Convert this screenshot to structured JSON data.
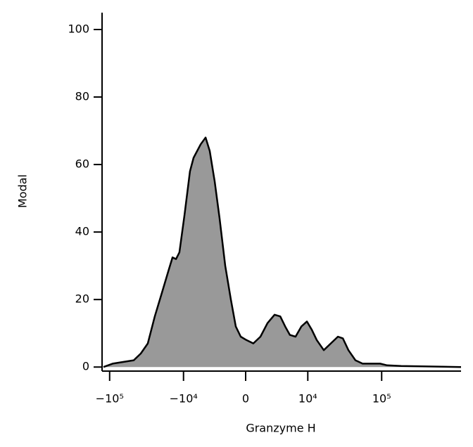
{
  "chart_data": {
    "type": "area",
    "xscale": "biexponential",
    "xlabel": "Granzyme H",
    "ylabel": "Modal",
    "x": [
      -121000,
      -91200,
      -66000,
      -47500,
      -38200,
      -30700,
      -24700,
      -19800,
      -15900,
      -14200,
      -12700,
      -11400,
      -9700,
      -8100,
      -7200,
      -5640,
      -4730,
      -4050,
      -3330,
      -2680,
      -2020,
      -1420,
      -930,
      -460,
      65,
      720,
      1420,
      2180,
      3050,
      3850,
      4650,
      5510,
      6680,
      8100,
      9720,
      11400,
      13300,
      16600,
      20700,
      25800,
      30100,
      35800,
      44500,
      55400,
      76800,
      95400,
      118500,
      183000,
      351000,
      1160000
    ],
    "series": [
      {
        "color": "#999999",
        "values": [
          0,
          1,
          1.5,
          2,
          4,
          7,
          15,
          22,
          29,
          32.5,
          32,
          34,
          45,
          58,
          62,
          66,
          68,
          64,
          55,
          44,
          30,
          20,
          12,
          9,
          8,
          7,
          9,
          13,
          15.5,
          15,
          12,
          9.5,
          9,
          12,
          13.5,
          11,
          8,
          5,
          7,
          9,
          8.5,
          5,
          2,
          1,
          1,
          1,
          0.5,
          0.3,
          0.2,
          0
        ]
      }
    ],
    "xlim": [
      -121000,
      1160000
    ],
    "xticks": [
      {
        "value": -100000,
        "label": "−10⁵"
      },
      {
        "value": -10000,
        "label": "−10⁴"
      },
      0,
      {
        "value": 10000,
        "label": "10⁴"
      },
      {
        "value": 100000,
        "label": "10⁵"
      }
    ],
    "ylim": [
      -1.2,
      105
    ],
    "yticks": [
      0,
      20,
      40,
      60,
      80,
      100
    ]
  }
}
